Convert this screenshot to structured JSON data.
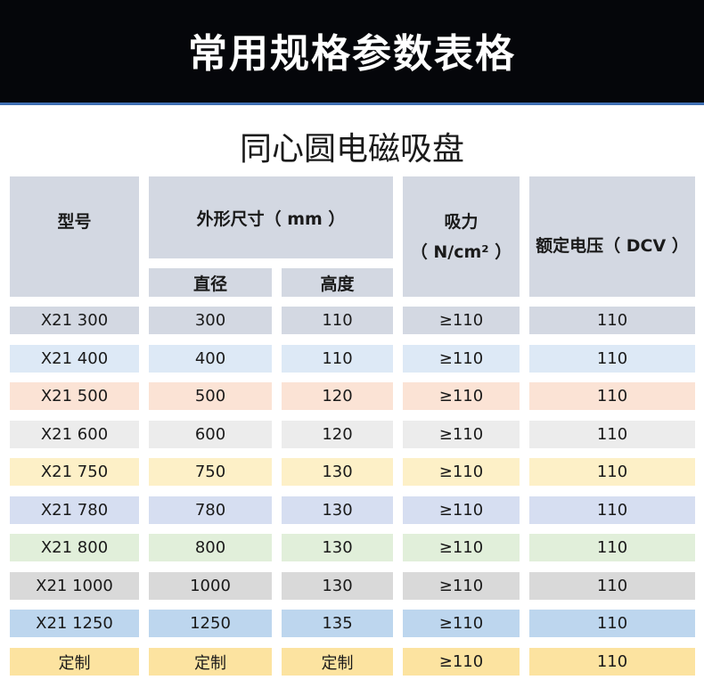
{
  "banner": {
    "title": "常用规格参数表格"
  },
  "subtitle": "同心圆电磁吸盘",
  "headers": {
    "model": "型号",
    "dimension": "外形尺寸（ mm ）",
    "diameter": "直径",
    "height": "高度",
    "force_line1": "吸力",
    "force_line2": "（ N/cm² ）",
    "voltage": "额定电压（ DCV ）"
  },
  "rows": [
    {
      "model": "X21 300",
      "diameter": "300",
      "height": "110",
      "force": "≥110",
      "voltage": "110",
      "color": "#d3d8e2"
    },
    {
      "model": "X21 400",
      "diameter": "400",
      "height": "110",
      "force": "≥110",
      "voltage": "110",
      "color": "#dde9f6"
    },
    {
      "model": "X21 500",
      "diameter": "500",
      "height": "120",
      "force": "≥110",
      "voltage": "110",
      "color": "#fbe3d5"
    },
    {
      "model": "X21 600",
      "diameter": "600",
      "height": "120",
      "force": "≥110",
      "voltage": "110",
      "color": "#ececec"
    },
    {
      "model": "X21 750",
      "diameter": "750",
      "height": "130",
      "force": "≥110",
      "voltage": "110",
      "color": "#fdf0c7"
    },
    {
      "model": "X21 780",
      "diameter": "780",
      "height": "130",
      "force": "≥110",
      "voltage": "110",
      "color": "#d6def1"
    },
    {
      "model": "X21 800",
      "diameter": "800",
      "height": "130",
      "force": "≥110",
      "voltage": "110",
      "color": "#e1efda"
    },
    {
      "model": "X21 1000",
      "diameter": "1000",
      "height": "130",
      "force": "≥110",
      "voltage": "110",
      "color": "#d9d9d9"
    },
    {
      "model": "X21 1250",
      "diameter": "1250",
      "height": "135",
      "force": "≥110",
      "voltage": "110",
      "color": "#bdd6ee"
    },
    {
      "model": "定制",
      "diameter": "定制",
      "height": "定制",
      "force": "≥110",
      "voltage": "110",
      "color": "#fce3a0"
    }
  ]
}
